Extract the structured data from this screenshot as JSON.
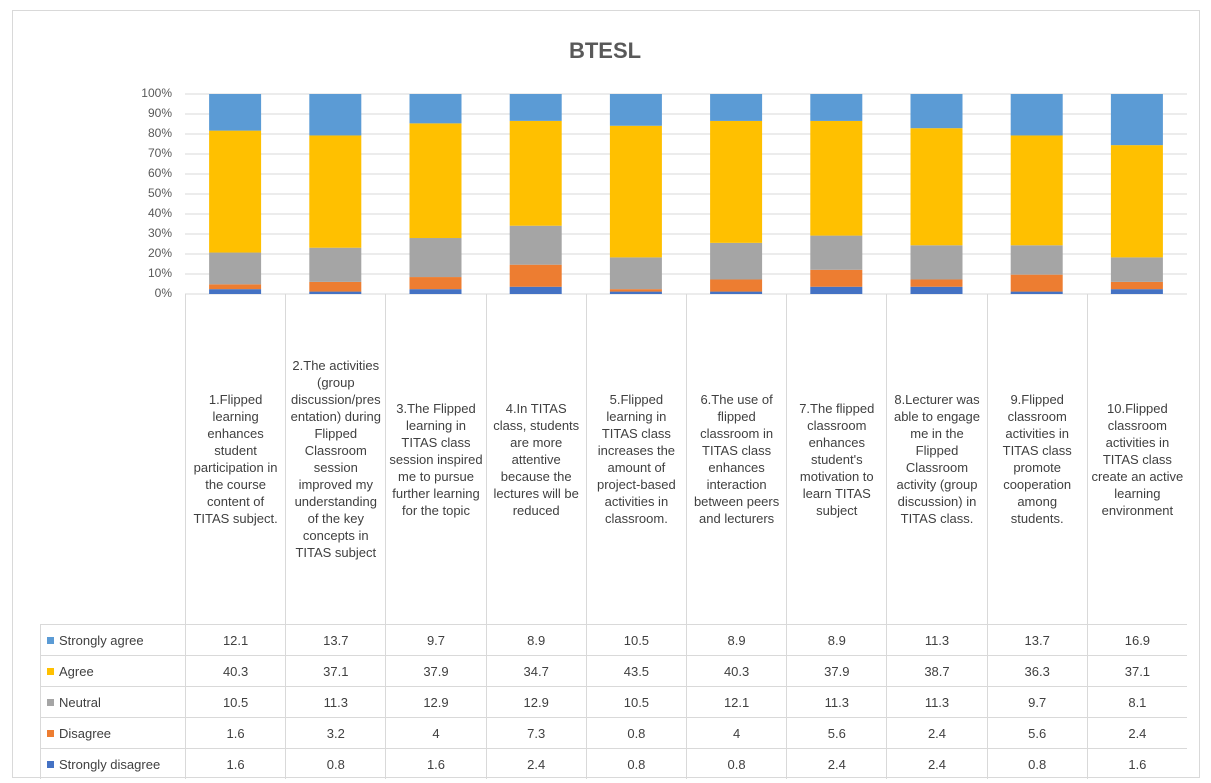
{
  "chart_data": {
    "type": "stacked_bar_100",
    "title": "BTESL",
    "categories": [
      "1.Flipped learning enhances student participation in the course content of TITAS subject.",
      "2.The activities (group discussion/presentation) during Flipped Classroom session improved my understanding of the key concepts in TITAS subject",
      "3.The Flipped learning in TITAS class session inspired me to pursue further learning for the topic",
      "4.In TITAS class, students are more attentive because the lectures will be reduced",
      "5.Flipped learning in TITAS class increases the amount of project-based activities in classroom.",
      "6.The use of flipped classroom in TITAS class enhances interaction between peers and lecturers",
      "7.The flipped classroom enhances student's motivation to learn TITAS subject",
      "8.Lecturer was able to engage me in the Flipped Classroom activity (group discussion) in TITAS class.",
      "9.Flipped classroom activities in TITAS class promote cooperation among students.",
      "10.Flipped classroom activities in TITAS class create an active learning environment"
    ],
    "series": [
      {
        "name": "Strongly agree",
        "color": "#5b9bd5",
        "values": [
          12.1,
          13.7,
          9.7,
          8.9,
          10.5,
          8.9,
          8.9,
          11.3,
          13.7,
          16.9
        ]
      },
      {
        "name": "Agree",
        "color": "#ffc000",
        "values": [
          40.3,
          37.1,
          37.9,
          34.7,
          43.5,
          40.3,
          37.9,
          38.7,
          36.3,
          37.1
        ]
      },
      {
        "name": "Neutral",
        "color": "#a5a5a5",
        "values": [
          10.5,
          11.3,
          12.9,
          12.9,
          10.5,
          12.1,
          11.3,
          11.3,
          9.7,
          8.1
        ]
      },
      {
        "name": "Disagree",
        "color": "#ed7d31",
        "values": [
          1.6,
          3.2,
          4,
          7.3,
          0.8,
          4,
          5.6,
          2.4,
          5.6,
          2.4
        ]
      },
      {
        "name": "Strongly disagree",
        "color": "#4472c4",
        "values": [
          1.6,
          0.8,
          1.6,
          2.4,
          0.8,
          0.8,
          2.4,
          2.4,
          0.8,
          1.6
        ]
      }
    ],
    "ylim": [
      0,
      100
    ],
    "yticks": [
      {
        "value": 0,
        "label": "0%"
      },
      {
        "value": 10,
        "label": "10%"
      },
      {
        "value": 20,
        "label": "20%"
      },
      {
        "value": 30,
        "label": "30%"
      },
      {
        "value": 40,
        "label": "40%"
      },
      {
        "value": 50,
        "label": "50%"
      },
      {
        "value": 60,
        "label": "60%"
      },
      {
        "value": 70,
        "label": "70%"
      },
      {
        "value": 80,
        "label": "80%"
      },
      {
        "value": 90,
        "label": "90%"
      },
      {
        "value": 100,
        "label": "100%"
      }
    ],
    "grid": true
  }
}
